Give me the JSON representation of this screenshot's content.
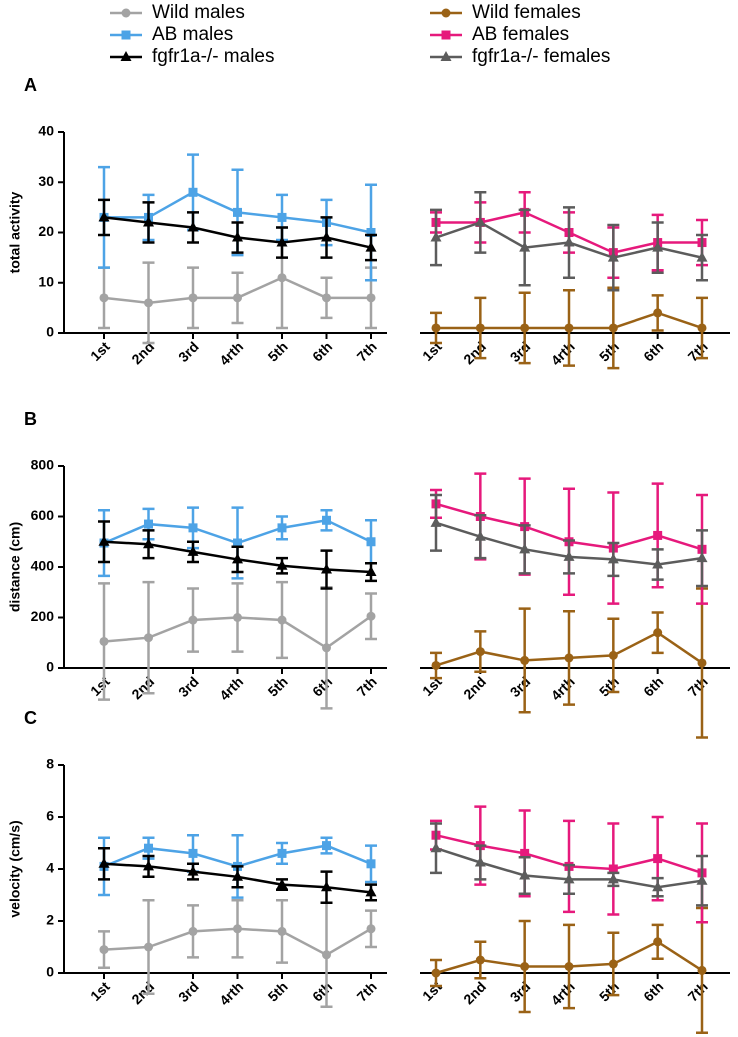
{
  "chart_data": [
    {
      "type": "line",
      "panel": "A",
      "y_label": "total activity",
      "categories": [
        "1st",
        "2nd",
        "3rd",
        "4rth",
        "5th",
        "6th",
        "7th"
      ],
      "ylim": [
        0,
        40
      ],
      "yticks": [
        0,
        10,
        20,
        30,
        40
      ],
      "series": [
        {
          "name": "Wild males",
          "color": "#a3a3a3",
          "marker": "circle",
          "values": [
            7,
            6,
            7,
            7,
            11,
            7,
            7
          ],
          "error": [
            6,
            8,
            6,
            5,
            10,
            4,
            6
          ]
        },
        {
          "name": "AB males",
          "color": "#4da3e6",
          "marker": "square",
          "values": [
            23,
            23,
            28,
            24,
            23,
            22,
            20
          ],
          "error": [
            10,
            4.5,
            7.5,
            8.5,
            4.5,
            4.5,
            9.5
          ]
        },
        {
          "name": "fgfr1a-/- males",
          "color": "#000000",
          "marker": "triangle",
          "values": [
            23,
            22,
            21,
            19,
            18,
            19,
            17
          ],
          "error": [
            3.5,
            4,
            3,
            3,
            3,
            4,
            2.5
          ]
        }
      ]
    },
    {
      "type": "line",
      "categories": [
        "1st",
        "2nd",
        "3rd",
        "4rth",
        "5th",
        "6th",
        "7th"
      ],
      "ylim": [
        0,
        40
      ],
      "series": [
        {
          "name": "Wild females",
          "color": "#9a6216",
          "marker": "circle",
          "values": [
            1,
            1,
            1,
            1,
            1,
            4,
            1
          ],
          "error": [
            3,
            6,
            7,
            7.5,
            8,
            3.5,
            6
          ]
        },
        {
          "name": "AB females",
          "color": "#e6197c",
          "marker": "square",
          "values": [
            22,
            22,
            24,
            20,
            16,
            18,
            18
          ],
          "error": [
            2,
            4,
            4,
            4,
            5,
            5.5,
            4.5
          ]
        },
        {
          "name": "fgfr1a-/- females",
          "color": "#5c5c5c",
          "marker": "triangle",
          "values": [
            19,
            22,
            17,
            18,
            15,
            17,
            15
          ],
          "error": [
            5.5,
            6,
            7.5,
            7,
            6.5,
            5,
            4.5
          ]
        }
      ]
    },
    {
      "type": "line",
      "panel": "B",
      "y_label": "distance (cm)",
      "categories": [
        "1st",
        "2nd",
        "3rd",
        "4rth",
        "5th",
        "6th",
        "7th"
      ],
      "ylim": [
        0,
        800
      ],
      "yticks": [
        0,
        200,
        400,
        600,
        800
      ],
      "series": [
        {
          "name": "Wild males",
          "color": "#a3a3a3",
          "marker": "circle",
          "values": [
            105,
            120,
            190,
            200,
            190,
            80,
            205
          ],
          "error": [
            230,
            220,
            125,
            135,
            150,
            240,
            90
          ]
        },
        {
          "name": "AB males",
          "color": "#4da3e6",
          "marker": "square",
          "values": [
            495,
            570,
            555,
            495,
            555,
            585,
            500
          ],
          "error": [
            130,
            60,
            80,
            140,
            45,
            40,
            85
          ]
        },
        {
          "name": "fgfr1a-/- males",
          "color": "#000000",
          "marker": "triangle",
          "values": [
            500,
            490,
            460,
            430,
            405,
            390,
            380
          ],
          "error": [
            80,
            55,
            40,
            50,
            30,
            75,
            35
          ]
        }
      ]
    },
    {
      "type": "line",
      "categories": [
        "1st",
        "2nd",
        "3rd",
        "4rth",
        "5th",
        "6th",
        "7th"
      ],
      "ylim": [
        0,
        800
      ],
      "series": [
        {
          "name": "Wild females",
          "color": "#9a6216",
          "marker": "circle",
          "values": [
            10,
            65,
            30,
            40,
            50,
            140,
            20
          ],
          "error": [
            50,
            80,
            205,
            185,
            145,
            80,
            295
          ]
        },
        {
          "name": "AB females",
          "color": "#e6197c",
          "marker": "square",
          "values": [
            650,
            600,
            560,
            500,
            475,
            525,
            470
          ],
          "error": [
            55,
            170,
            190,
            210,
            220,
            205,
            215
          ]
        },
        {
          "name": "fgfr1a-/- females",
          "color": "#5c5c5c",
          "marker": "triangle",
          "values": [
            575,
            520,
            470,
            440,
            430,
            410,
            435
          ],
          "error": [
            110,
            85,
            95,
            65,
            65,
            60,
            110
          ]
        }
      ]
    },
    {
      "type": "line",
      "panel": "C",
      "y_label": "velocity (cm/s)",
      "categories": [
        "1st",
        "2nd",
        "3rd",
        "4rth",
        "5th",
        "6th",
        "7th"
      ],
      "ylim": [
        0,
        8
      ],
      "yticks": [
        0,
        2,
        4,
        6,
        8
      ],
      "series": [
        {
          "name": "Wild males",
          "color": "#a3a3a3",
          "marker": "circle",
          "values": [
            0.9,
            1.0,
            1.6,
            1.7,
            1.6,
            0.7,
            1.7
          ],
          "error": [
            0.7,
            1.8,
            1.0,
            1.1,
            1.2,
            2.0,
            0.7
          ]
        },
        {
          "name": "AB males",
          "color": "#4da3e6",
          "marker": "square",
          "values": [
            4.1,
            4.8,
            4.6,
            4.1,
            4.6,
            4.9,
            4.2
          ],
          "error": [
            1.1,
            0.4,
            0.7,
            1.2,
            0.4,
            0.3,
            0.7
          ]
        },
        {
          "name": "fgfr1a-/- males",
          "color": "#000000",
          "marker": "triangle",
          "values": [
            4.2,
            4.1,
            3.9,
            3.7,
            3.4,
            3.3,
            3.1
          ],
          "error": [
            0.6,
            0.4,
            0.3,
            0.4,
            0.2,
            0.6,
            0.3
          ]
        }
      ]
    },
    {
      "type": "line",
      "categories": [
        "1st",
        "2nd",
        "3rd",
        "4rth",
        "5th",
        "6th",
        "7th"
      ],
      "ylim": [
        0,
        8
      ],
      "series": [
        {
          "name": "Wild females",
          "color": "#9a6216",
          "marker": "circle",
          "values": [
            0.0,
            0.5,
            0.25,
            0.25,
            0.35,
            1.2,
            0.1
          ],
          "error": [
            0.5,
            0.7,
            1.75,
            1.6,
            1.2,
            0.65,
            2.4
          ]
        },
        {
          "name": "AB females",
          "color": "#e6197c",
          "marker": "square",
          "values": [
            5.3,
            4.9,
            4.6,
            4.1,
            4.0,
            4.4,
            3.85
          ],
          "error": [
            0.55,
            1.5,
            1.65,
            1.75,
            1.75,
            1.6,
            1.9
          ]
        },
        {
          "name": "fgfr1a-/- females",
          "color": "#5c5c5c",
          "marker": "triangle",
          "values": [
            4.8,
            4.25,
            3.75,
            3.6,
            3.6,
            3.3,
            3.55
          ],
          "error": [
            0.95,
            0.65,
            0.7,
            0.55,
            0.25,
            0.35,
            0.95
          ]
        }
      ]
    }
  ]
}
